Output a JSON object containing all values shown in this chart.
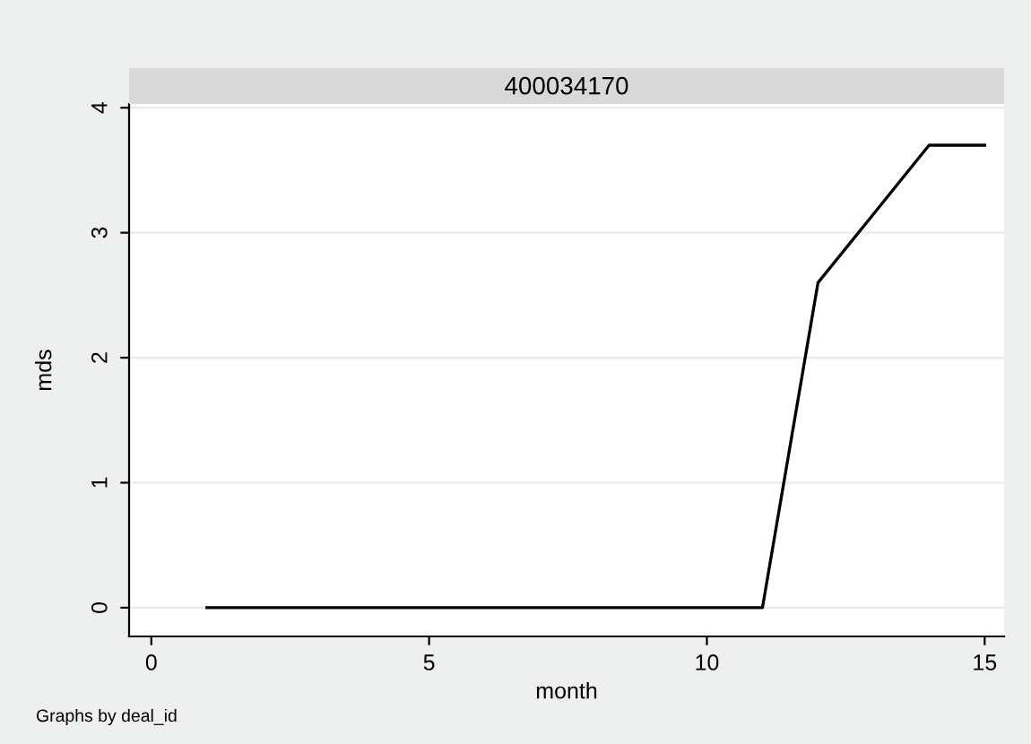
{
  "chart_data": {
    "type": "line",
    "title": "400034170",
    "xlabel": "month",
    "ylabel": "mds",
    "x": [
      1,
      2,
      3,
      4,
      5,
      6,
      7,
      8,
      9,
      10,
      11,
      12,
      13,
      14,
      15
    ],
    "series": [
      {
        "color": "#000000",
        "values": [
          0,
          0,
          0,
          0,
          0,
          0,
          0,
          0,
          0,
          0,
          0,
          2.6,
          3.15,
          3.7,
          3.7
        ]
      }
    ],
    "xlim": [
      -0.4,
      15.35
    ],
    "ylim": [
      -0.23,
      4.03
    ],
    "xticks": [
      0,
      5,
      10,
      15
    ],
    "yticks": [
      0,
      1,
      2,
      3,
      4
    ],
    "grid": "y",
    "marker": "none",
    "line_style": "solid",
    "annotations": [
      "Graphs by deal_id"
    ]
  }
}
